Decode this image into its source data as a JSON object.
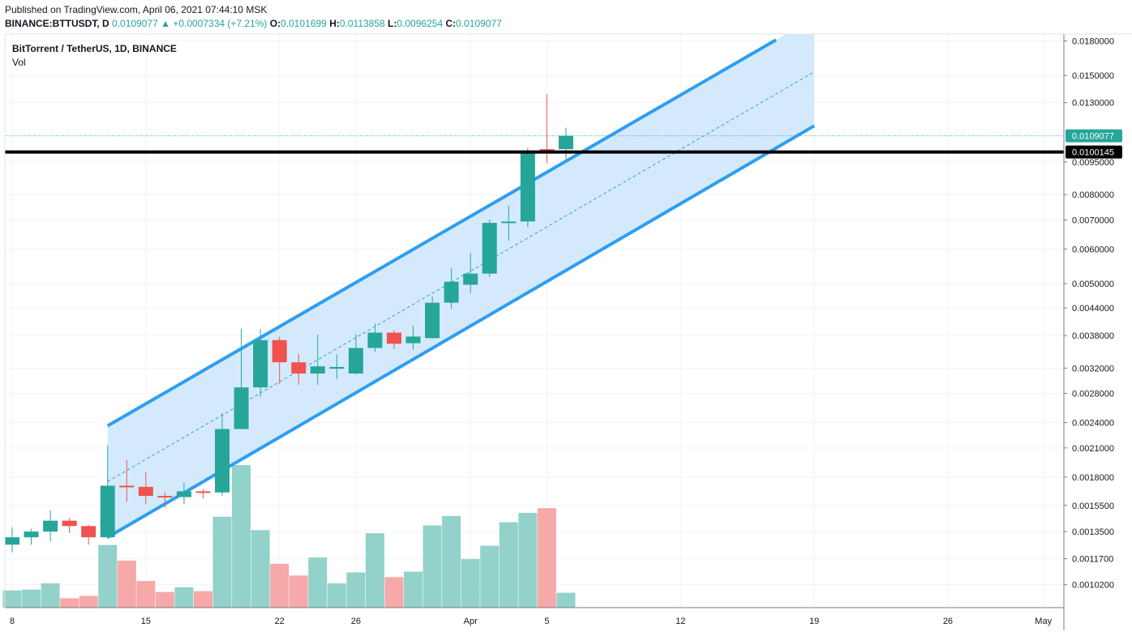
{
  "header": {
    "published": "Published on TradingView.com, April 06, 2021 07:44:10 MSK",
    "symbol": "BINANCE:BTTUSDT, D",
    "last_close": "0.0109077",
    "change": "+0.0007334 (+7.21%)",
    "open_label": "O:",
    "open": "0.0101699",
    "high_label": "H:",
    "high": "0.0113858",
    "low_label": "L:",
    "low": "0.0096254",
    "close_label": "C:",
    "close": "0.0109077"
  },
  "legend": {
    "title": "BitTorrent / TetherUS, 1D, BINANCE",
    "volume_label": "Vol"
  },
  "colors": {
    "up": "#26a69a",
    "down": "#ef5350",
    "vol_up": "#92d2cb",
    "vol_down": "#f6a9a8",
    "channel_line": "#2f9ef0",
    "channel_fill": "#cce6fb",
    "level_line": "#000000",
    "grid": "#f0f3fa"
  },
  "chart_data": {
    "type": "candlestick",
    "title": "BitTorrent / TetherUS, 1D, BINANCE",
    "y_scale": "log",
    "ylim": [
      0.00098,
      0.0182
    ],
    "price_ticks": [
      0.00102,
      0.00117,
      0.00135,
      0.00155,
      0.0018,
      0.0021,
      0.0024,
      0.0028,
      0.0032,
      0.0038,
      0.0044,
      0.005,
      0.006,
      0.007,
      0.008,
      0.0095,
      0.013,
      0.015,
      0.018
    ],
    "price_tick_labels": [
      "0.0010200",
      "0.0011700",
      "0.0013500",
      "0.0015500",
      "0.0018000",
      "0.0021000",
      "0.0024000",
      "0.0028000",
      "0.0032000",
      "0.0038000",
      "0.0044000",
      "0.0050000",
      "0.0060000",
      "0.0070000",
      "0.0080000",
      "0.0095000",
      "0.0130000",
      "0.0150000",
      "0.0180000"
    ],
    "x_tick_labels": [
      {
        "label": "8",
        "date": "2021-03-08"
      },
      {
        "label": "15",
        "date": "2021-03-15"
      },
      {
        "label": "22",
        "date": "2021-03-22"
      },
      {
        "label": "26",
        "date": "2021-03-26"
      },
      {
        "label": "Apr",
        "date": "2021-04-01"
      },
      {
        "label": "5",
        "date": "2021-04-05"
      },
      {
        "label": "12",
        "date": "2021-04-12"
      },
      {
        "label": "19",
        "date": "2021-04-19"
      },
      {
        "label": "26",
        "date": "2021-04-26"
      },
      {
        "label": "May",
        "date": "2021-05-01"
      }
    ],
    "candles": [
      {
        "date": "2021-03-08",
        "o": 0.00126,
        "h": 0.00138,
        "l": 0.00121,
        "c": 0.00131,
        "vol": 0.22
      },
      {
        "date": "2021-03-09",
        "o": 0.00131,
        "h": 0.00137,
        "l": 0.00126,
        "c": 0.00135,
        "vol": 0.23
      },
      {
        "date": "2021-03-10",
        "o": 0.00135,
        "h": 0.00151,
        "l": 0.00128,
        "c": 0.00143,
        "vol": 0.31
      },
      {
        "date": "2021-03-11",
        "o": 0.00143,
        "h": 0.00145,
        "l": 0.00134,
        "c": 0.00139,
        "vol": 0.12
      },
      {
        "date": "2021-03-12",
        "o": 0.00139,
        "h": 0.0014,
        "l": 0.00126,
        "c": 0.00131,
        "vol": 0.15
      },
      {
        "date": "2021-03-13",
        "o": 0.00131,
        "h": 0.00213,
        "l": 0.0013,
        "c": 0.00172,
        "vol": 0.8
      },
      {
        "date": "2021-03-14",
        "o": 0.00172,
        "h": 0.00197,
        "l": 0.00158,
        "c": 0.00171,
        "vol": 0.6
      },
      {
        "date": "2021-03-15",
        "o": 0.00171,
        "h": 0.00185,
        "l": 0.00156,
        "c": 0.00163,
        "vol": 0.34
      },
      {
        "date": "2021-03-16",
        "o": 0.00163,
        "h": 0.00166,
        "l": 0.00153,
        "c": 0.00162,
        "vol": 0.2
      },
      {
        "date": "2021-03-17",
        "o": 0.00162,
        "h": 0.00175,
        "l": 0.00156,
        "c": 0.00167,
        "vol": 0.26
      },
      {
        "date": "2021-03-18",
        "o": 0.00167,
        "h": 0.00169,
        "l": 0.00161,
        "c": 0.00166,
        "vol": 0.21
      },
      {
        "date": "2021-03-19",
        "o": 0.00166,
        "h": 0.00252,
        "l": 0.00163,
        "c": 0.00232,
        "vol": 1.16
      },
      {
        "date": "2021-03-20",
        "o": 0.00232,
        "h": 0.00394,
        "l": 0.00232,
        "c": 0.00289,
        "vol": 1.82
      },
      {
        "date": "2021-03-21",
        "o": 0.00289,
        "h": 0.00393,
        "l": 0.00275,
        "c": 0.00371,
        "vol": 0.99
      },
      {
        "date": "2021-03-22",
        "o": 0.00371,
        "h": 0.00378,
        "l": 0.00294,
        "c": 0.0033,
        "vol": 0.56
      },
      {
        "date": "2021-03-23",
        "o": 0.0033,
        "h": 0.00345,
        "l": 0.00293,
        "c": 0.00311,
        "vol": 0.41
      },
      {
        "date": "2021-03-24",
        "o": 0.00311,
        "h": 0.00382,
        "l": 0.00293,
        "c": 0.00323,
        "vol": 0.64
      },
      {
        "date": "2021-03-25",
        "o": 0.00319,
        "h": 0.00344,
        "l": 0.00302,
        "c": 0.00322,
        "vol": 0.31
      },
      {
        "date": "2021-03-26",
        "o": 0.00311,
        "h": 0.00383,
        "l": 0.00309,
        "c": 0.00356,
        "vol": 0.45
      },
      {
        "date": "2021-03-27",
        "o": 0.00356,
        "h": 0.00405,
        "l": 0.00349,
        "c": 0.00386,
        "vol": 0.95
      },
      {
        "date": "2021-03-28",
        "o": 0.00386,
        "h": 0.00391,
        "l": 0.00354,
        "c": 0.00364,
        "vol": 0.39
      },
      {
        "date": "2021-03-29",
        "o": 0.00365,
        "h": 0.004,
        "l": 0.00353,
        "c": 0.00378,
        "vol": 0.46
      },
      {
        "date": "2021-03-30",
        "o": 0.00375,
        "h": 0.00467,
        "l": 0.00374,
        "c": 0.00452,
        "vol": 1.05
      },
      {
        "date": "2021-03-31",
        "o": 0.00452,
        "h": 0.00543,
        "l": 0.00438,
        "c": 0.00505,
        "vol": 1.17
      },
      {
        "date": "2021-04-01",
        "o": 0.00497,
        "h": 0.00588,
        "l": 0.00476,
        "c": 0.00527,
        "vol": 0.62
      },
      {
        "date": "2021-04-02",
        "o": 0.00527,
        "h": 0.00701,
        "l": 0.00518,
        "c": 0.00689,
        "vol": 0.79
      },
      {
        "date": "2021-04-03",
        "o": 0.00689,
        "h": 0.00754,
        "l": 0.00628,
        "c": 0.00694,
        "vol": 1.09
      },
      {
        "date": "2021-04-04",
        "o": 0.00694,
        "h": 0.01024,
        "l": 0.00674,
        "c": 0.01004,
        "vol": 1.21
      },
      {
        "date": "2021-04-05",
        "o": 0.01017,
        "h": 0.01358,
        "l": 0.00944,
        "c": 0.01003,
        "vol": 1.27
      },
      {
        "date": "2021-04-06",
        "o": 0.01017,
        "h": 0.01139,
        "l": 0.00963,
        "c": 0.01091,
        "vol": 0.19
      }
    ],
    "channel": {
      "upper": {
        "start": {
          "date": "2021-03-13",
          "price": 0.00236
        },
        "end": {
          "date": "2021-04-17",
          "price": 0.0181
        }
      },
      "lower": {
        "start": {
          "date": "2021-03-13",
          "price": 0.00131
        },
        "end": {
          "date": "2021-04-19",
          "price": 0.0115
        }
      },
      "fill_end_date": "2021-04-19"
    },
    "horizontal_level": {
      "price": 0.0100145,
      "label": "0.0100145"
    },
    "last_price": {
      "price": 0.0109077,
      "label": "0.0109077"
    }
  }
}
